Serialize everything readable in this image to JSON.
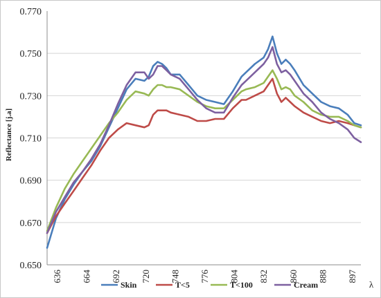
{
  "chart_data": {
    "type": "line",
    "title": "",
    "xlabel": "λ",
    "ylabel": "Reflectance [j.a]",
    "ylim": [
      0.65,
      0.77
    ],
    "yticks": [
      "0.770",
      "0.750",
      "0.730",
      "0.710",
      "0.690",
      "0.670",
      "0.650"
    ],
    "xticks": [
      "636",
      "664",
      "692",
      "720",
      "748",
      "776",
      "804",
      "832",
      "860",
      "888",
      "897"
    ],
    "grid": "horizontal",
    "legend_position": "bottom",
    "x": [
      628,
      636,
      644,
      652,
      660,
      668,
      676,
      684,
      692,
      700,
      708,
      716,
      720,
      724,
      728,
      732,
      736,
      740,
      748,
      756,
      764,
      772,
      780,
      788,
      796,
      804,
      808,
      816,
      824,
      828,
      832,
      836,
      840,
      844,
      848,
      852,
      860,
      868,
      876,
      884,
      892,
      900,
      906,
      912
    ],
    "series": [
      {
        "name": "Skin",
        "color": "#4a7ebb",
        "values": [
          0.658,
          0.672,
          0.681,
          0.688,
          0.694,
          0.699,
          0.706,
          0.715,
          0.724,
          0.733,
          0.738,
          0.737,
          0.739,
          0.744,
          0.746,
          0.745,
          0.743,
          0.74,
          0.74,
          0.735,
          0.73,
          0.728,
          0.727,
          0.726,
          0.732,
          0.739,
          0.741,
          0.745,
          0.748,
          0.752,
          0.758,
          0.75,
          0.745,
          0.747,
          0.745,
          0.742,
          0.735,
          0.731,
          0.727,
          0.725,
          0.724,
          0.721,
          0.717,
          0.716
        ]
      },
      {
        "name": "T<5",
        "color": "#be4b48",
        "values": [
          0.665,
          0.673,
          0.679,
          0.685,
          0.691,
          0.697,
          0.704,
          0.71,
          0.714,
          0.717,
          0.716,
          0.715,
          0.716,
          0.721,
          0.723,
          0.723,
          0.723,
          0.722,
          0.721,
          0.72,
          0.718,
          0.718,
          0.719,
          0.719,
          0.724,
          0.728,
          0.728,
          0.73,
          0.732,
          0.735,
          0.738,
          0.731,
          0.727,
          0.729,
          0.727,
          0.725,
          0.722,
          0.72,
          0.718,
          0.717,
          0.718,
          0.717,
          0.716,
          0.715
        ]
      },
      {
        "name": "T<100",
        "color": "#98b954",
        "values": [
          0.666,
          0.677,
          0.686,
          0.693,
          0.699,
          0.705,
          0.711,
          0.717,
          0.722,
          0.728,
          0.732,
          0.731,
          0.73,
          0.733,
          0.735,
          0.735,
          0.734,
          0.734,
          0.733,
          0.73,
          0.727,
          0.725,
          0.724,
          0.724,
          0.728,
          0.732,
          0.733,
          0.734,
          0.736,
          0.739,
          0.742,
          0.738,
          0.733,
          0.734,
          0.733,
          0.73,
          0.727,
          0.723,
          0.721,
          0.72,
          0.72,
          0.718,
          0.716,
          0.715
        ]
      },
      {
        "name": "Cream",
        "color": "#7d60a0",
        "values": [
          0.665,
          0.675,
          0.682,
          0.689,
          0.694,
          0.7,
          0.707,
          0.716,
          0.726,
          0.735,
          0.741,
          0.741,
          0.738,
          0.74,
          0.744,
          0.744,
          0.742,
          0.74,
          0.738,
          0.733,
          0.728,
          0.724,
          0.722,
          0.722,
          0.729,
          0.735,
          0.737,
          0.741,
          0.745,
          0.748,
          0.753,
          0.745,
          0.741,
          0.742,
          0.74,
          0.737,
          0.731,
          0.727,
          0.722,
          0.719,
          0.717,
          0.714,
          0.71,
          0.708
        ]
      }
    ]
  }
}
